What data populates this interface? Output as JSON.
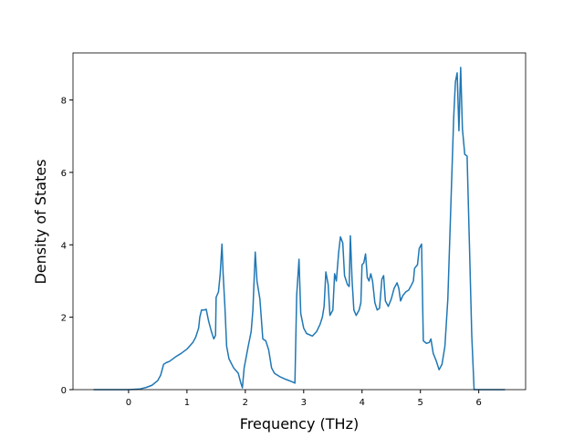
{
  "chart_data": {
    "type": "line",
    "x_label": "Frequency (THz)",
    "y_label": "Density of States",
    "xlim": [
      -0.9525,
      6.8025
    ],
    "ylim": [
      0,
      9.3
    ],
    "xticks": [
      0,
      1,
      2,
      3,
      4,
      5,
      6
    ],
    "yticks": [
      0,
      2,
      4,
      6,
      8
    ],
    "grid": false,
    "series": [
      {
        "color": "#1f77b4",
        "x": [
          -0.6,
          0,
          0.2,
          0.3,
          0.4,
          0.5,
          0.55,
          0.6,
          0.65,
          0.7,
          0.8,
          0.9,
          1.0,
          1.1,
          1.15,
          1.2,
          1.22,
          1.25,
          1.3,
          1.33,
          1.37,
          1.42,
          1.46,
          1.49,
          1.5,
          1.54,
          1.57,
          1.6,
          1.62,
          1.65,
          1.68,
          1.72,
          1.8,
          1.88,
          1.92,
          1.95,
          1.98,
          2.05,
          2.1,
          2.13,
          2.15,
          2.17,
          2.2,
          2.25,
          2.3,
          2.35,
          2.4,
          2.45,
          2.5,
          2.6,
          2.7,
          2.8,
          2.85,
          2.88,
          2.92,
          2.95,
          3.0,
          3.05,
          3.15,
          3.22,
          3.28,
          3.32,
          3.35,
          3.38,
          3.42,
          3.45,
          3.5,
          3.53,
          3.56,
          3.6,
          3.63,
          3.67,
          3.7,
          3.75,
          3.78,
          3.8,
          3.83,
          3.86,
          3.9,
          3.95,
          3.98,
          4.0,
          4.03,
          4.06,
          4.09,
          4.12,
          4.15,
          4.18,
          4.22,
          4.26,
          4.3,
          4.34,
          4.37,
          4.4,
          4.45,
          4.5,
          4.55,
          4.6,
          4.63,
          4.66,
          4.7,
          4.75,
          4.8,
          4.85,
          4.88,
          4.9,
          4.95,
          4.98,
          5.02,
          5.05,
          5.1,
          5.15,
          5.18,
          5.22,
          5.27,
          5.32,
          5.37,
          5.42,
          5.47,
          5.52,
          5.57,
          5.6,
          5.63,
          5.66,
          5.69,
          5.72,
          5.76,
          5.8,
          5.84,
          5.88,
          5.92,
          6.45
        ],
        "values": [
          0,
          0,
          0.02,
          0.06,
          0.12,
          0.25,
          0.4,
          0.7,
          0.75,
          0.78,
          0.9,
          1.0,
          1.12,
          1.3,
          1.45,
          1.7,
          2.0,
          2.2,
          2.2,
          2.22,
          1.9,
          1.6,
          1.4,
          1.5,
          2.55,
          2.7,
          3.2,
          4.02,
          3.2,
          2.3,
          1.2,
          0.85,
          0.6,
          0.45,
          0.2,
          0.05,
          0.6,
          1.2,
          1.6,
          2.2,
          3.0,
          3.8,
          3.0,
          2.5,
          1.4,
          1.35,
          1.1,
          0.6,
          0.45,
          0.35,
          0.28,
          0.22,
          0.18,
          2.6,
          3.6,
          2.1,
          1.7,
          1.55,
          1.48,
          1.6,
          1.8,
          2.0,
          2.3,
          3.25,
          2.9,
          2.05,
          2.2,
          3.2,
          3.0,
          3.8,
          4.22,
          4.05,
          3.15,
          2.9,
          2.85,
          4.25,
          3.0,
          2.2,
          2.05,
          2.2,
          2.4,
          3.45,
          3.5,
          3.75,
          3.1,
          3.0,
          3.2,
          3.0,
          2.4,
          2.2,
          2.25,
          3.05,
          3.15,
          2.45,
          2.3,
          2.5,
          2.8,
          2.95,
          2.8,
          2.45,
          2.6,
          2.7,
          2.75,
          2.9,
          3.0,
          3.35,
          3.45,
          3.9,
          4.02,
          1.35,
          1.28,
          1.3,
          1.4,
          1.0,
          0.8,
          0.55,
          0.7,
          1.2,
          2.5,
          5.0,
          7.5,
          8.5,
          8.75,
          7.15,
          8.9,
          7.2,
          6.5,
          6.45,
          4.0,
          1.5,
          0,
          0
        ]
      }
    ]
  }
}
